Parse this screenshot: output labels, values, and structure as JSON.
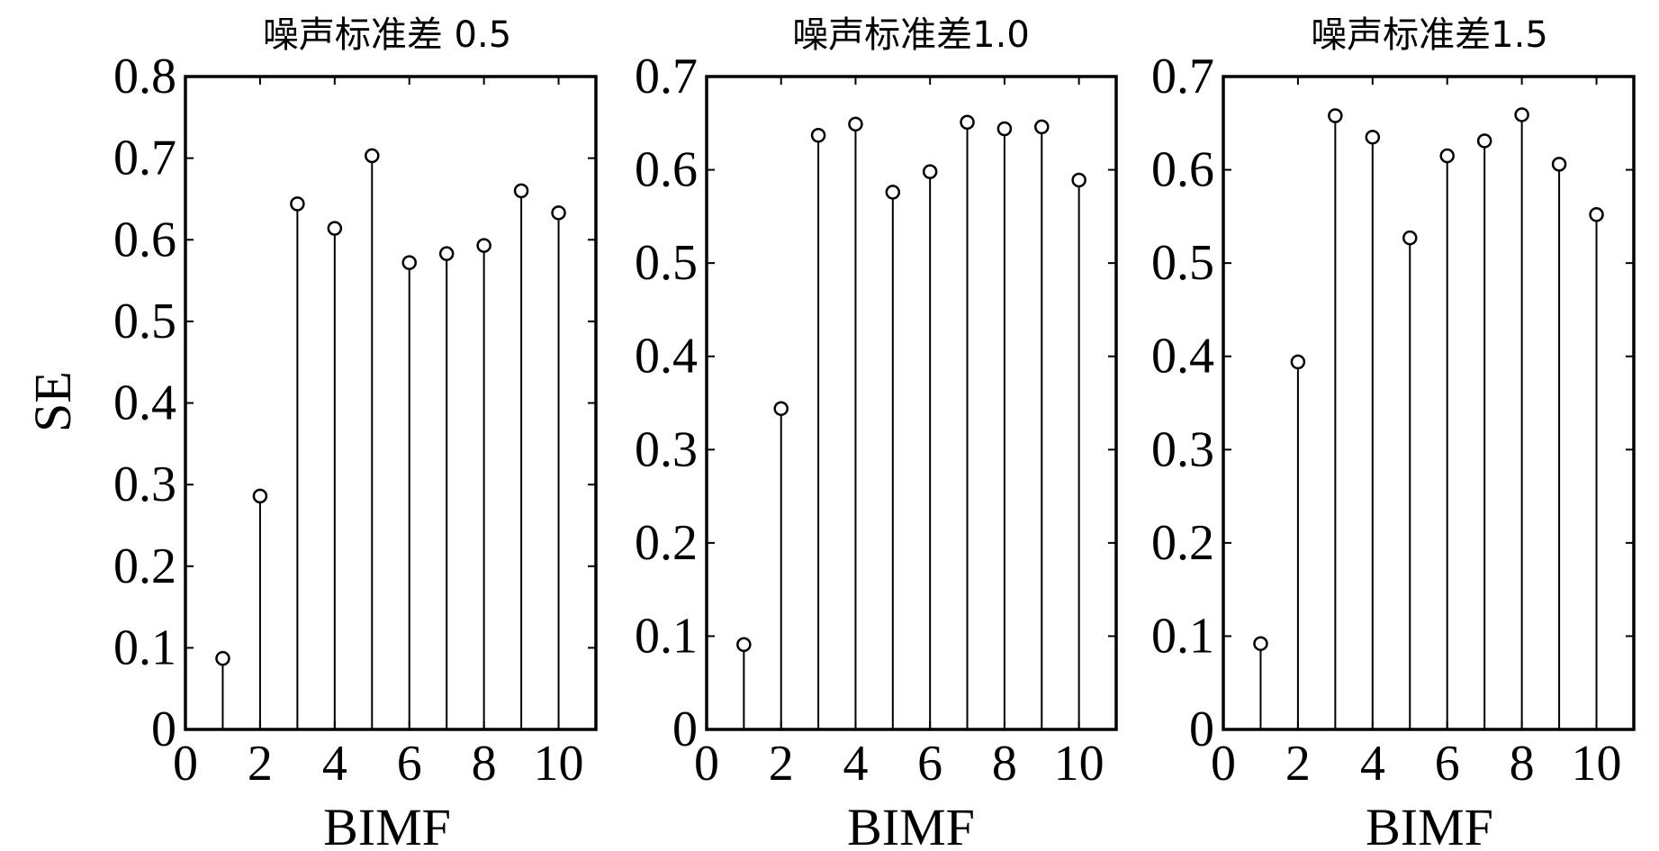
{
  "figure": {
    "ylabel": "SE",
    "colors": {
      "stem": "#000000",
      "frame": "#000000",
      "background": "#ffffff"
    }
  },
  "chart_data": [
    {
      "type": "stem",
      "title": "噪声标准差 0.5",
      "xlabel": "BIMF",
      "ylabel": "SE",
      "xlim": [
        0,
        11
      ],
      "ylim": [
        0,
        0.8
      ],
      "xticks": [
        0,
        2,
        4,
        6,
        8,
        10
      ],
      "yticks": [
        0,
        0.1,
        0.2,
        0.3,
        0.4,
        0.5,
        0.6,
        0.7,
        0.8
      ],
      "ytick_labels": [
        "0",
        "0.1",
        "0.2",
        "0.3",
        "0.4",
        "0.5",
        "0.6",
        "0.7",
        "0.8"
      ],
      "x": [
        1,
        2,
        3,
        4,
        5,
        6,
        7,
        8,
        9,
        10
      ],
      "values": [
        0.087,
        0.286,
        0.644,
        0.614,
        0.703,
        0.572,
        0.583,
        0.593,
        0.66,
        0.633
      ]
    },
    {
      "type": "stem",
      "title": "噪声标准差1.0",
      "xlabel": "BIMF",
      "ylabel": "",
      "xlim": [
        0,
        11
      ],
      "ylim": [
        0,
        0.7
      ],
      "xticks": [
        0,
        2,
        4,
        6,
        8,
        10
      ],
      "yticks": [
        0,
        0.1,
        0.2,
        0.3,
        0.4,
        0.5,
        0.6,
        0.7
      ],
      "ytick_labels": [
        "0",
        "0.1",
        "0.2",
        "0.3",
        "0.4",
        "0.5",
        "0.6",
        "0.7"
      ],
      "x": [
        1,
        2,
        3,
        4,
        5,
        6,
        7,
        8,
        9,
        10
      ],
      "values": [
        0.091,
        0.344,
        0.637,
        0.649,
        0.576,
        0.598,
        0.651,
        0.644,
        0.646,
        0.589
      ]
    },
    {
      "type": "stem",
      "title": "噪声标准差1.5",
      "xlabel": "BIMF",
      "ylabel": "",
      "xlim": [
        0,
        11
      ],
      "ylim": [
        0,
        0.7
      ],
      "xticks": [
        0,
        2,
        4,
        6,
        8,
        10
      ],
      "yticks": [
        0,
        0.1,
        0.2,
        0.3,
        0.4,
        0.5,
        0.6,
        0.7
      ],
      "ytick_labels": [
        "0",
        "0.1",
        "0.2",
        "0.3",
        "0.4",
        "0.5",
        "0.6",
        "0.7"
      ],
      "x": [
        1,
        2,
        3,
        4,
        5,
        6,
        7,
        8,
        9,
        10
      ],
      "values": [
        0.092,
        0.394,
        0.658,
        0.635,
        0.527,
        0.615,
        0.631,
        0.659,
        0.606,
        0.552
      ]
    }
  ]
}
